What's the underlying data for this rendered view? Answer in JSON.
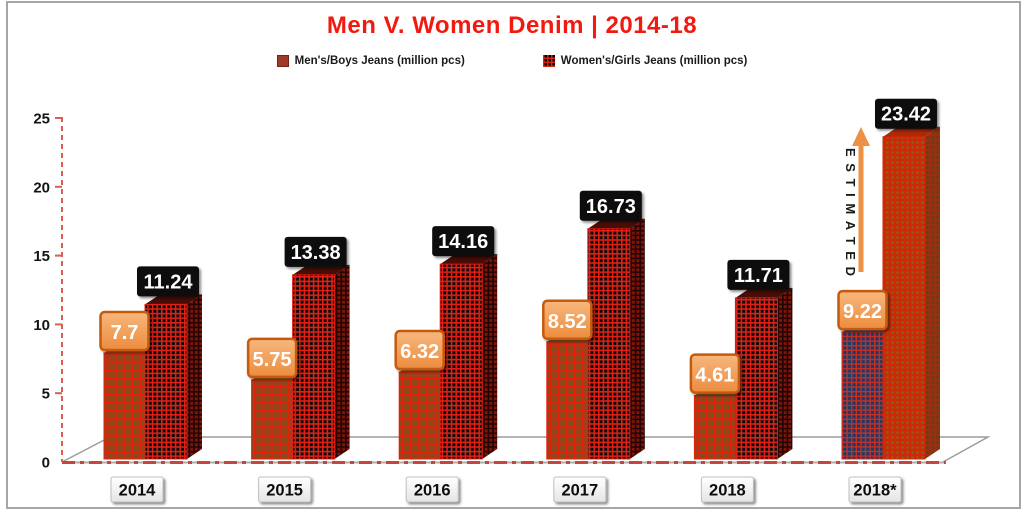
{
  "title": {
    "text": "Men V. Women Denim | 2014-18",
    "color": "#F2190F"
  },
  "legend": {
    "items": [
      {
        "label": "Men's/Boys Jeans (million pcs)",
        "swatch": "men-solid-square",
        "color": "#A03A28"
      },
      {
        "label": "Women's/Girls  Jeans (million pcs)",
        "swatch": "women-grid-square",
        "color": "#000000",
        "grid_color": "#E02014"
      }
    ]
  },
  "chart_data": {
    "type": "bar",
    "categories": [
      "2014",
      "2015",
      "2016",
      "2017",
      "2018",
      "2018*"
    ],
    "series": [
      {
        "name": "Men's/Boys Jeans (million pcs)",
        "values": [
          7.7,
          5.75,
          6.32,
          8.52,
          4.61,
          9.22
        ]
      },
      {
        "name": "Women's/Girls Jeans (million pcs)",
        "values": [
          11.24,
          13.38,
          14.16,
          16.73,
          11.71,
          23.42
        ]
      }
    ],
    "value_labels": [
      [
        "7.7",
        "5.75",
        "6.32",
        "8.52",
        "4.61",
        "9.22"
      ],
      [
        "11.24",
        "13.38",
        "14.16",
        "16.73",
        "11.71",
        "23.42"
      ]
    ],
    "title": "Men V. Women Denim | 2014-18",
    "xlabel": "",
    "ylabel": "",
    "ylim": [
      0,
      25
    ],
    "yticks": [
      0,
      5,
      10,
      15,
      20,
      25
    ],
    "grid": false,
    "legend_position": "top",
    "effect": "3d-bars",
    "annotation": {
      "text": "ESTIMATED",
      "category": "2018*",
      "arrow": "up"
    },
    "styles": {
      "men_fill": "#8A4A1C",
      "men_grid": "#E3200A",
      "men_top": "#A85A22",
      "women_fill": "#0A0A0A",
      "women_grid": "#E02014",
      "women_side": "#7D150B",
      "women_side_grid": "#230402",
      "women_top": "#4A0C06",
      "est_men_fill": "#1E3A66",
      "est_men_grid": "#C03028",
      "est_men_top": "#2A4A7E",
      "est_women_fill": "#CE2806",
      "est_women_dot": "#7A6A24",
      "est_women_side": "#9A2E10",
      "est_women_side_dot": "#564417",
      "est_women_top": "#AD2A08",
      "men_label_bg_top": "#F7B77D",
      "men_label_bg_bottom": "#EC8C3F",
      "men_label_border": "#C55A11",
      "women_label_bg": "#0B0B0B",
      "label_text": "#FFFFFF",
      "axis_red": "#D95F55",
      "baseline_red": "#C8453C",
      "baseline_gray": "#ABABAB",
      "floor_gray": "#9C9C9C",
      "tick_text": "#141414",
      "arrow_orange": "#ED9144",
      "annotation_text": "#1A1A1A",
      "cat_box_border": "#BFBFBF",
      "cat_box_top": "#FFFFFF",
      "cat_box_bottom": "#E4E4E4",
      "cat_text": "#111111"
    }
  }
}
